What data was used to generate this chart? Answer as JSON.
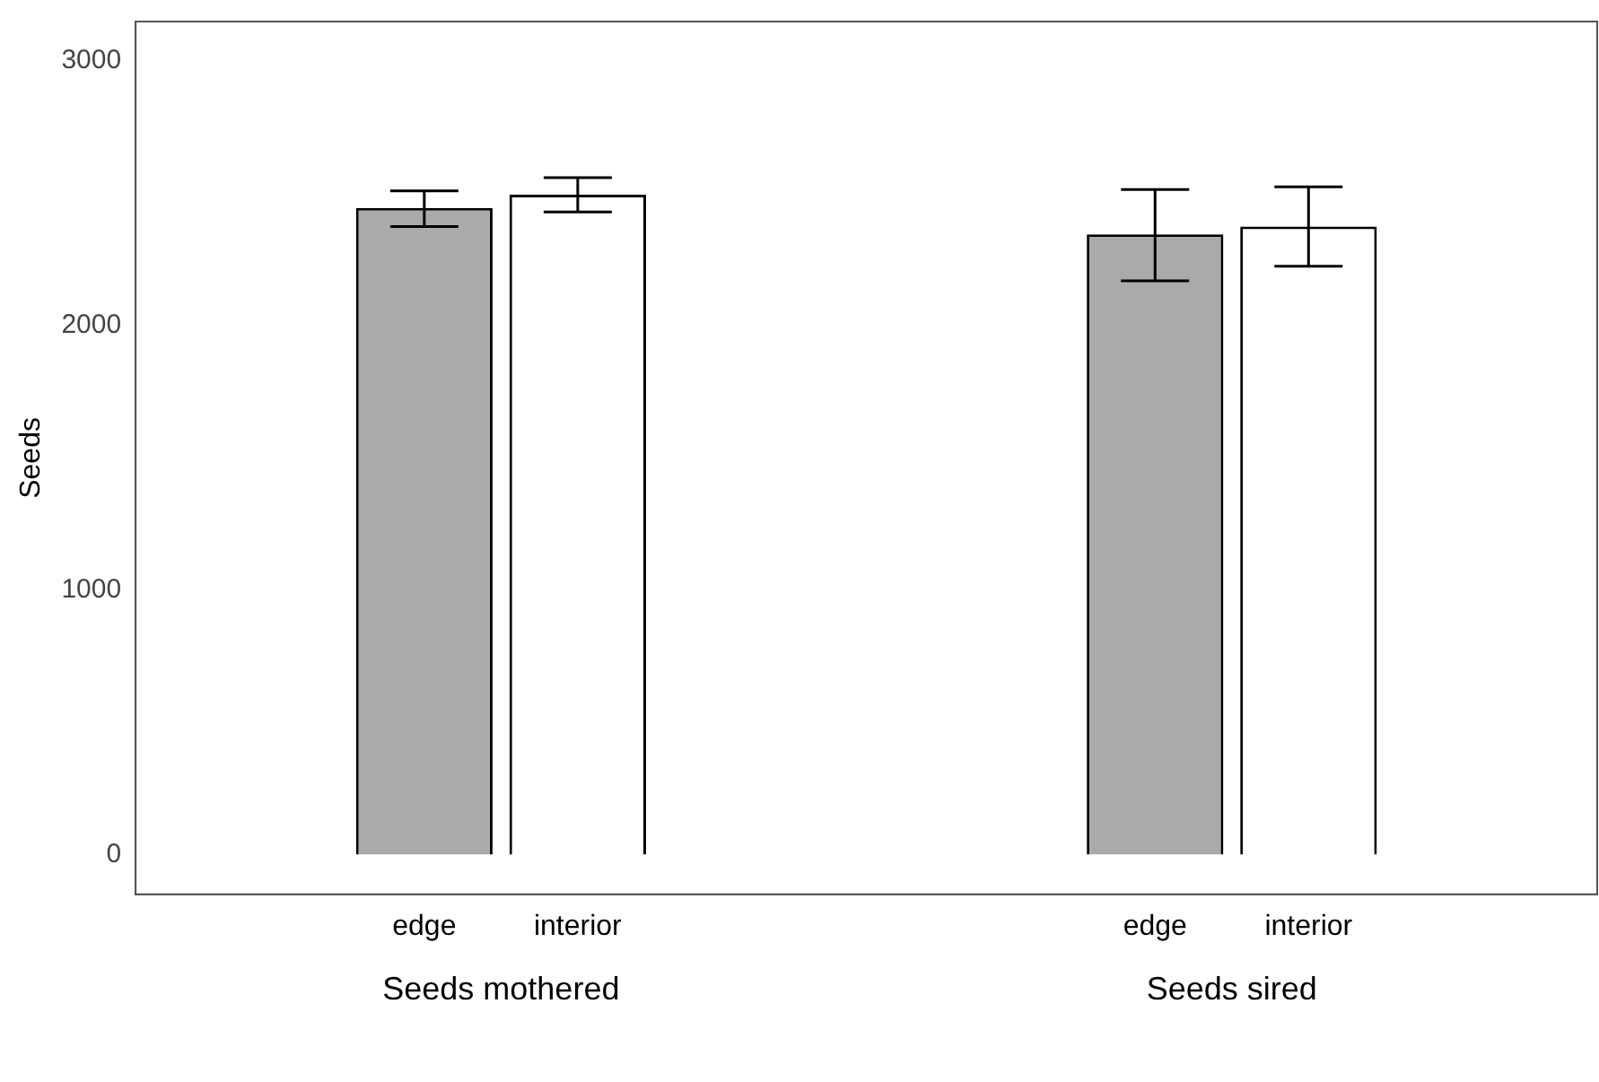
{
  "chart_data": {
    "type": "bar",
    "ylabel": "Seeds",
    "categories": [
      "Seeds mothered",
      "Seeds sired"
    ],
    "series": [
      {
        "name": "edge",
        "color": "#aaaaaa",
        "values": [
          2445,
          2345
        ],
        "errors": [
          [
            2375,
            2510
          ],
          [
            2170,
            2515
          ]
        ]
      },
      {
        "name": "interior",
        "color": "#ffffff",
        "values": [
          2495,
          2375
        ],
        "errors": [
          [
            2430,
            2560
          ],
          [
            2225,
            2525
          ]
        ]
      }
    ],
    "ylim": [
      -150,
      3150
    ],
    "yticks": [
      0,
      1000,
      2000,
      3000
    ],
    "grid": false,
    "legend": false
  }
}
